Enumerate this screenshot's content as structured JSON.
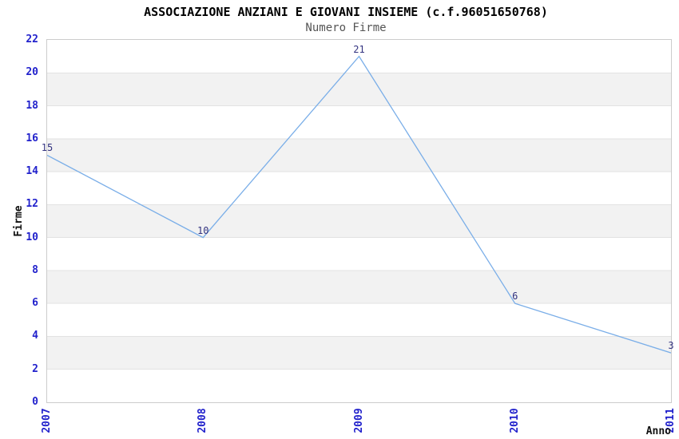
{
  "chart_data": {
    "type": "line",
    "title": "ASSOCIAZIONE ANZIANI E GIOVANI INSIEME (c.f.96051650768)",
    "subtitle": "Numero Firme",
    "xlabel": "Anno",
    "ylabel": "Firme",
    "categories": [
      "2007",
      "2008",
      "2009",
      "2010",
      "2011"
    ],
    "values": [
      15,
      10,
      21,
      6,
      3
    ],
    "point_labels": [
      "15",
      "10",
      "21",
      "6",
      "3"
    ],
    "ylim": [
      0,
      22
    ],
    "ytick_step": 2,
    "yticks": [
      0,
      2,
      4,
      6,
      8,
      10,
      12,
      14,
      16,
      18,
      20,
      22
    ],
    "grid": "alternating horizontal bands every 2 units, no vertical gridlines",
    "legend_position": "none",
    "colors": {
      "line": "#7aaee8",
      "tick_label": "#2222cc",
      "point_label": "#333380",
      "band": "#f2f2f2",
      "gridline": "#e2e2e2",
      "plot_border": "#cccccc",
      "title": "#000000",
      "subtitle": "#555555",
      "axis_title": "#111111",
      "background": "#ffffff"
    }
  }
}
